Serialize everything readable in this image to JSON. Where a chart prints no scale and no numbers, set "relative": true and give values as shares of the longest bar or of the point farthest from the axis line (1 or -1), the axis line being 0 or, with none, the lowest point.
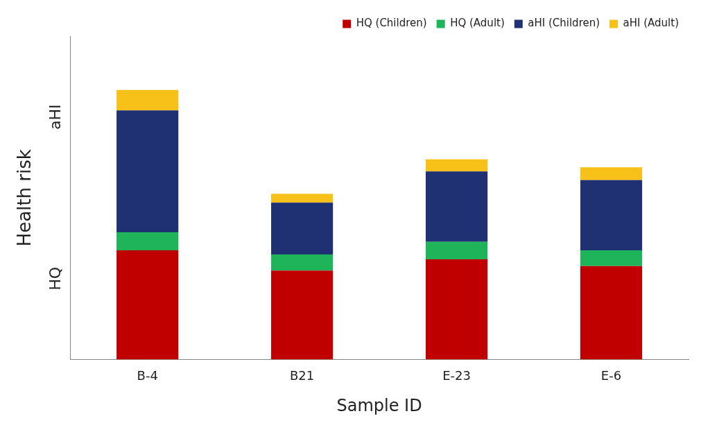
{
  "chart_data": {
    "type": "bar",
    "stacked": true,
    "relative": true,
    "xlabel": "Sample ID",
    "ylabel": "Health risk",
    "annotations": [
      "HQ",
      "aHI"
    ],
    "legend": "top right",
    "categories": [
      "B-4",
      "B21",
      "E-23",
      "E-6"
    ],
    "series": [
      {
        "name": "HQ (Children)",
        "color": "#c00000",
        "values": [
          0.405,
          0.33,
          0.372,
          0.347
        ]
      },
      {
        "name": "HQ (Adult)",
        "color": "#1fb35a",
        "values": [
          0.067,
          0.06,
          0.065,
          0.058
        ]
      },
      {
        "name": "aHI (Children)",
        "color": "#1f3173",
        "values": [
          0.452,
          0.192,
          0.261,
          0.261
        ]
      },
      {
        "name": "aHI (Adult)",
        "color": "#f7c11a",
        "values": [
          0.076,
          0.033,
          0.045,
          0.047
        ]
      }
    ]
  }
}
